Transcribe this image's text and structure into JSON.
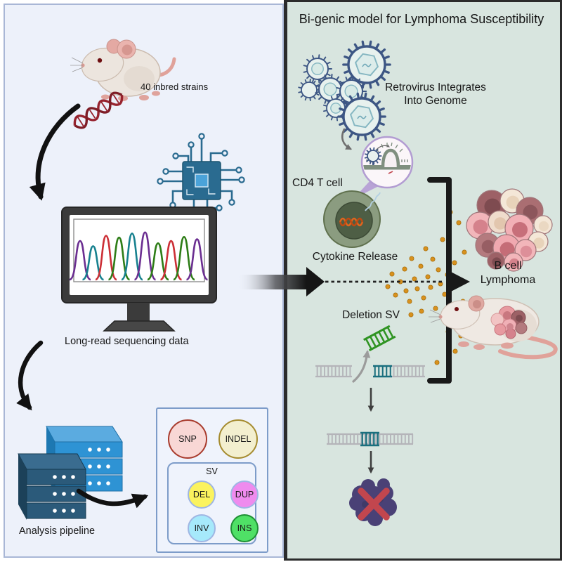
{
  "panels": {
    "left": {
      "strains_label": "40 inbred strains",
      "sequencing_caption": "Long-read sequencing data",
      "pipeline_caption": "Analysis pipeline",
      "variants": {
        "snp": "SNP",
        "indel": "INDEL",
        "sv": "SV",
        "del": "DEL",
        "dup": "DUP",
        "inv": "INV",
        "ins": "INS"
      }
    },
    "right": {
      "title": "Bi-genic model for Lymphoma Susceptibility",
      "retrovirus_line1": "Retrovirus Integrates",
      "retrovirus_line2": "Into Genome",
      "cd4_label": "CD4 T cell",
      "cytokine_label": "Cytokine Release",
      "bcell_line1": "B cell",
      "bcell_line2": "Lymphoma",
      "deletion_label": "Deletion SV"
    }
  },
  "colors": {
    "left_bg": "#edf1fa",
    "right_bg": "#d8e5df",
    "divider": "#2b2b2b",
    "virus": "#3d5684",
    "virus_fill": "#e7f1ee",
    "cytokine_dot": "#d8911d",
    "teal_dna": "#1a6f7e",
    "green_sv": "#2f9422",
    "gray_dna": "#b4b4b9",
    "blob": "#4a4176",
    "cross": "#c2464e",
    "server_light": "#2e93d4",
    "server_dark": "#2b5a7a",
    "chip": "#2a6b90"
  },
  "chromatogram": {
    "peaks": [
      {
        "color": "#6b2e91",
        "height": 0.67
      },
      {
        "color": "#17818f",
        "height": 0.58
      },
      {
        "color": "#cc2f36",
        "height": 0.76
      },
      {
        "color": "#2e7d17",
        "height": 0.73
      },
      {
        "color": "#17818f",
        "height": 0.8
      },
      {
        "color": "#6b2e91",
        "height": 0.82
      },
      {
        "color": "#2e7d17",
        "height": 0.63
      },
      {
        "color": "#cc2f36",
        "height": 0.67
      },
      {
        "color": "#2e7d17",
        "height": 0.74
      },
      {
        "color": "#6b2e91",
        "height": 0.7
      }
    ]
  }
}
